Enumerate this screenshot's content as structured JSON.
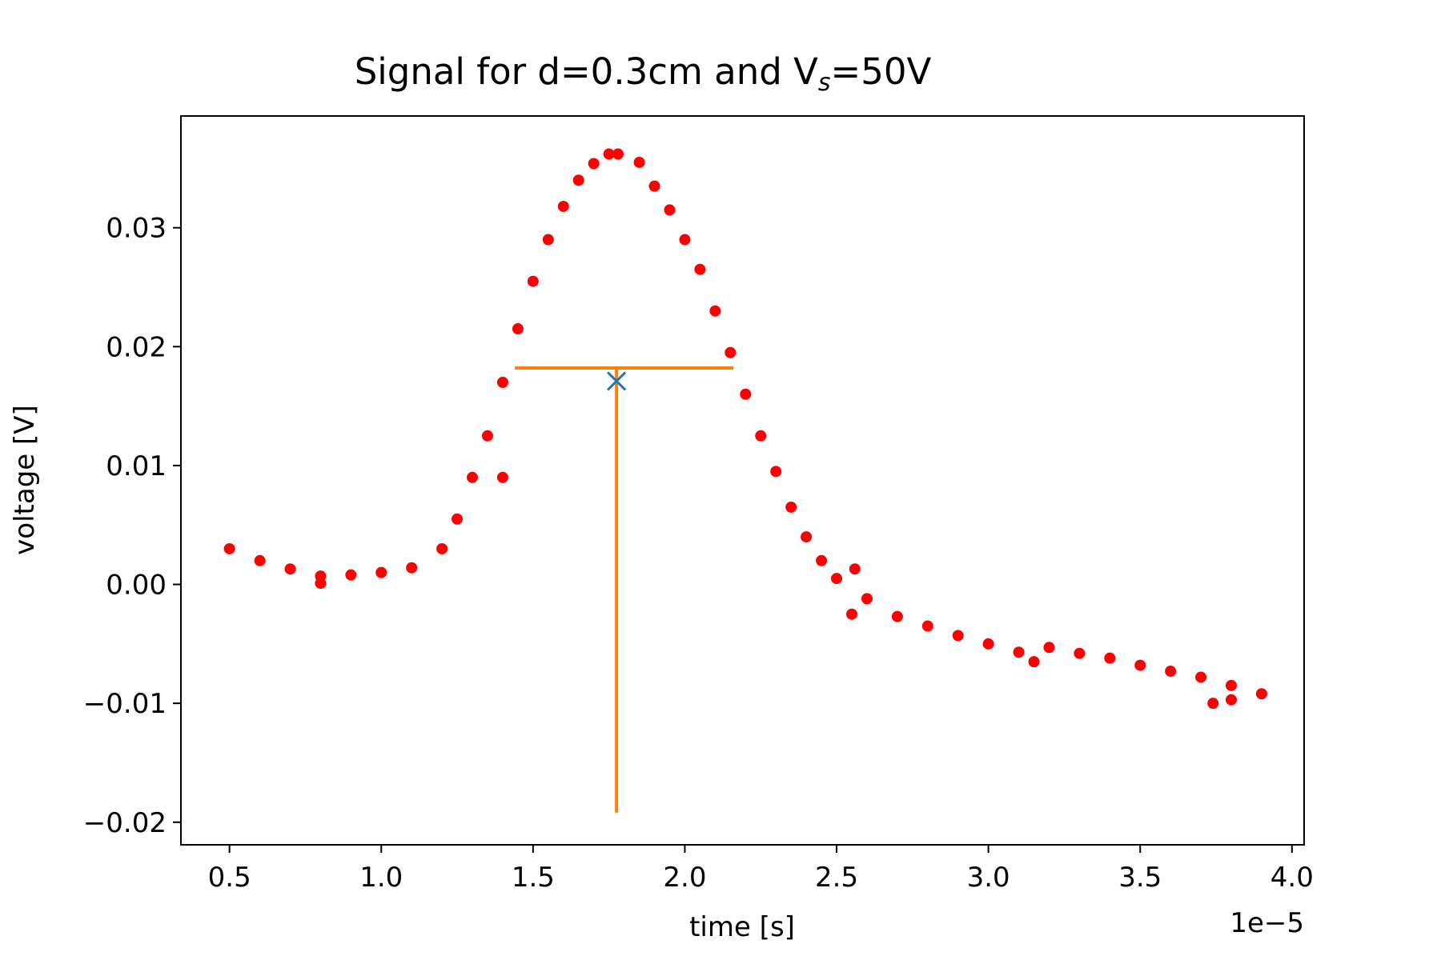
{
  "chart_data": {
    "type": "scatter",
    "title_main": "Signal for d=0.3cm and V",
    "title_sub": "s",
    "title_end": "=50V",
    "xlabel": "time [s]",
    "ylabel": "voltage [V]",
    "x_offset_label": "1e−5",
    "xlim": [
      0.34,
      4.04
    ],
    "ylim": [
      -0.0219,
      0.0394
    ],
    "x_ticks": [
      0.5,
      1.0,
      1.5,
      2.0,
      2.5,
      3.0,
      3.5,
      4.0
    ],
    "x_tick_labels": [
      "0.5",
      "1.0",
      "1.5",
      "2.0",
      "2.5",
      "3.0",
      "3.5",
      "4.0"
    ],
    "y_ticks": [
      -0.02,
      -0.01,
      0.0,
      0.01,
      0.02,
      0.03
    ],
    "y_tick_labels": [
      "−0.02",
      "−0.01",
      "0.00",
      "0.01",
      "0.02",
      "0.03"
    ],
    "grid": false,
    "series": [
      {
        "marker": "circle",
        "color": "#ff0000",
        "x": [
          0.5,
          0.6,
          0.7,
          0.8,
          0.9,
          1.0,
          1.1,
          1.2,
          1.25,
          1.3,
          1.35,
          1.4,
          1.45,
          1.5,
          1.55,
          1.6,
          1.65,
          1.7,
          1.75,
          1.78,
          1.85,
          1.9,
          1.95,
          2.0,
          2.05,
          2.1,
          2.15,
          2.2,
          2.25,
          2.3,
          2.35,
          2.4,
          2.45,
          2.5,
          2.6,
          2.7,
          2.8,
          2.9,
          3.0,
          3.1,
          3.2,
          3.3,
          3.4,
          3.5,
          3.6,
          3.7,
          3.8,
          3.9
        ],
        "y": [
          0.003,
          0.002,
          0.0013,
          0.0007,
          0.0008,
          0.001,
          0.0014,
          0.003,
          0.0055,
          0.009,
          0.0125,
          0.017,
          0.0215,
          0.0255,
          0.029,
          0.0318,
          0.034,
          0.0354,
          0.0362,
          0.0362,
          0.0355,
          0.0335,
          0.0315,
          0.029,
          0.0265,
          0.023,
          0.0195,
          0.016,
          0.0125,
          0.0095,
          0.0065,
          0.004,
          0.002,
          0.0005,
          -0.0012,
          -0.0027,
          -0.0035,
          -0.0043,
          -0.005,
          -0.0057,
          -0.0053,
          -0.0058,
          -0.0062,
          -0.0068,
          -0.0073,
          -0.0078,
          -0.0085,
          -0.0092
        ]
      },
      {
        "marker": "circle",
        "color": "#ff0000",
        "x": [
          0.8,
          1.4,
          2.55,
          3.15,
          3.74,
          3.8,
          2.56
        ],
        "y": [
          0.0001,
          0.009,
          -0.0025,
          -0.0065,
          -0.01,
          -0.0097,
          0.0013
        ]
      }
    ],
    "fwhm_line": {
      "x0": 1.44,
      "x1": 2.16,
      "y": 0.0182,
      "color": "#ff7f0e"
    },
    "center_line": {
      "x": 1.775,
      "y0": -0.0192,
      "y1": 0.0182,
      "color": "#ff7f0e"
    },
    "center_marker": {
      "x": 1.775,
      "y": 0.0171,
      "marker": "x",
      "color": "#1f77b4"
    }
  }
}
